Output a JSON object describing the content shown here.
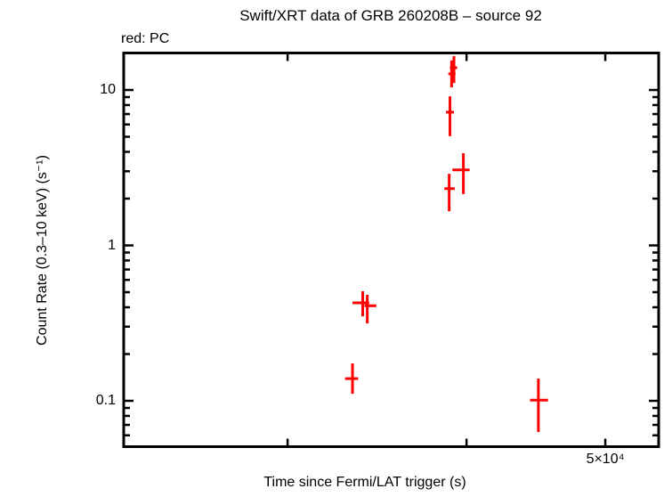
{
  "header": {
    "title": "Swift/XRT data of GRB 260208B – source 92",
    "legend_label": "red: PC"
  },
  "colors": {
    "series_pc": "#ff0000",
    "axis": "#000000",
    "background": "#ffffff"
  },
  "chart_data": {
    "type": "scatter",
    "title": "Swift/XRT data of GRB 260208B – source 92",
    "xlabel": "Time since Fermi/LAT trigger (s)",
    "ylabel": "Count Rate (0.3–10 keV) (s⁻¹)",
    "legend": {
      "text": "red: PC",
      "position": "top-left",
      "series_color": "#ff0000"
    },
    "xscale": "log",
    "yscale": "log",
    "grid": false,
    "xlim": [
      23050,
      54480
    ],
    "ylim": [
      0.0507,
      17.3
    ],
    "xticks": [
      {
        "value": 30000,
        "label": ""
      },
      {
        "value": 40000,
        "label": ""
      },
      {
        "value": 50000,
        "label": "5×10⁴"
      }
    ],
    "yticks": [
      {
        "value": 0.1,
        "label": "0.1"
      },
      {
        "value": 1,
        "label": "1"
      },
      {
        "value": 10,
        "label": "10"
      }
    ],
    "yminorticks": [
      0.05,
      0.06,
      0.07,
      0.08,
      0.09,
      0.2,
      0.3,
      0.4,
      0.5,
      0.6,
      0.7,
      0.8,
      0.9,
      2,
      3,
      4,
      5,
      6,
      7,
      8,
      9
    ],
    "series": [
      {
        "name": "PC",
        "color": "#ff0000",
        "marker": "cross-error-bars",
        "points": [
          {
            "t": 33300,
            "t_lo": 32900,
            "t_hi": 33600,
            "rate": 0.139,
            "rate_lo": 0.111,
            "rate_hi": 0.174
          },
          {
            "t": 33850,
            "t_lo": 33300,
            "t_hi": 34200,
            "rate": 0.427,
            "rate_lo": 0.35,
            "rate_hi": 0.507
          },
          {
            "t": 34100,
            "t_lo": 33950,
            "t_hi": 34600,
            "rate": 0.409,
            "rate_lo": 0.315,
            "rate_hi": 0.481
          },
          {
            "t": 38900,
            "t_lo": 38600,
            "t_hi": 39250,
            "rate": 2.32,
            "rate_lo": 1.66,
            "rate_hi": 2.89
          },
          {
            "t": 38950,
            "t_lo": 38700,
            "t_hi": 39200,
            "rate": 7.2,
            "rate_lo": 5.05,
            "rate_hi": 9.1
          },
          {
            "t": 39050,
            "t_lo": 38850,
            "t_hi": 39300,
            "rate": 12.7,
            "rate_lo": 10.4,
            "rate_hi": 15.5
          },
          {
            "t": 39200,
            "t_lo": 38950,
            "t_hi": 39400,
            "rate": 13.9,
            "rate_lo": 11.1,
            "rate_hi": 16.5
          },
          {
            "t": 39800,
            "t_lo": 39100,
            "t_hi": 40200,
            "rate": 3.06,
            "rate_lo": 2.14,
            "rate_hi": 3.92
          },
          {
            "t": 44900,
            "t_lo": 44300,
            "t_hi": 45600,
            "rate": 0.101,
            "rate_lo": 0.063,
            "rate_hi": 0.139
          }
        ]
      }
    ]
  }
}
